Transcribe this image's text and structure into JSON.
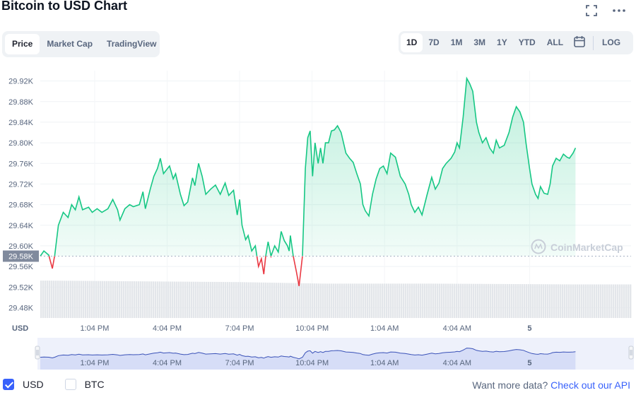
{
  "header": {
    "title": "Bitcoin to USD Chart"
  },
  "chart_type_tabs": [
    "Price",
    "Market Cap",
    "TradingView"
  ],
  "active_type_tab": 0,
  "range_tabs": [
    "1D",
    "7D",
    "1M",
    "3M",
    "1Y",
    "YTD",
    "ALL"
  ],
  "active_range_tab": 0,
  "log_label": "LOG",
  "icons": {
    "expand": "expand-icon",
    "more": "more-icon",
    "calendar": "calendar-icon",
    "watermark": "coinmarketcap-logo"
  },
  "colors": {
    "up": "#16c784",
    "down": "#ea3943",
    "accent": "#3861fb"
  },
  "watermark": "CoinMarketCap",
  "currency_label": "USD",
  "chart_data": {
    "type": "area",
    "currency": "USD",
    "ylim": [
      29.46,
      29.94
    ],
    "y_ticks": [
      "29.92K",
      "29.88K",
      "29.84K",
      "29.80K",
      "29.76K",
      "29.72K",
      "29.68K",
      "29.64K",
      "29.60K",
      "29.56K",
      "29.52K",
      "29.48K"
    ],
    "y_tick_values": [
      29.92,
      29.88,
      29.84,
      29.8,
      29.76,
      29.72,
      29.68,
      29.64,
      29.6,
      29.56,
      29.52,
      29.48
    ],
    "reference": {
      "value": 29.58,
      "label": "29.58K"
    },
    "x_ticks": [
      "1:04 PM",
      "4:04 PM",
      "7:04 PM",
      "10:04 PM",
      "1:04 AM",
      "4:04 AM",
      "5"
    ],
    "x_tick_positions": [
      2.0,
      5.0,
      8.0,
      11.0,
      14.0,
      17.0,
      20.0
    ],
    "xlim": [
      -0.25,
      24.2
    ],
    "series": [
      {
        "values": [
          [
            -0.25,
            29.58
          ],
          [
            -0.1,
            29.59
          ],
          [
            0.1,
            29.582
          ],
          [
            0.25,
            29.556
          ],
          [
            0.35,
            29.582
          ],
          [
            0.5,
            29.64
          ],
          [
            0.7,
            29.665
          ],
          [
            0.9,
            29.655
          ],
          [
            1.05,
            29.68
          ],
          [
            1.2,
            29.67
          ],
          [
            1.35,
            29.695
          ],
          [
            1.5,
            29.67
          ],
          [
            1.75,
            29.675
          ],
          [
            1.9,
            29.665
          ],
          [
            2.1,
            29.672
          ],
          [
            2.3,
            29.665
          ],
          [
            2.55,
            29.672
          ],
          [
            2.75,
            29.69
          ],
          [
            2.95,
            29.67
          ],
          [
            3.05,
            29.65
          ],
          [
            3.25,
            29.672
          ],
          [
            3.45,
            29.68
          ],
          [
            3.6,
            29.676
          ],
          [
            3.85,
            29.68
          ],
          [
            4.0,
            29.705
          ],
          [
            4.1,
            29.672
          ],
          [
            4.3,
            29.71
          ],
          [
            4.45,
            29.735
          ],
          [
            4.6,
            29.75
          ],
          [
            4.72,
            29.77
          ],
          [
            4.85,
            29.74
          ],
          [
            5.1,
            29.755
          ],
          [
            5.25,
            29.73
          ],
          [
            5.35,
            29.74
          ],
          [
            5.55,
            29.7
          ],
          [
            5.7,
            29.678
          ],
          [
            5.85,
            29.685
          ],
          [
            6.05,
            29.732
          ],
          [
            6.15,
            29.717
          ],
          [
            6.3,
            29.76
          ],
          [
            6.45,
            29.735
          ],
          [
            6.6,
            29.7
          ],
          [
            6.8,
            29.71
          ],
          [
            7.0,
            29.718
          ],
          [
            7.2,
            29.7
          ],
          [
            7.4,
            29.722
          ],
          [
            7.55,
            29.698
          ],
          [
            7.75,
            29.708
          ],
          [
            7.9,
            29.66
          ],
          [
            8.0,
            29.69
          ],
          [
            8.1,
            29.64
          ],
          [
            8.25,
            29.612
          ],
          [
            8.35,
            29.62
          ],
          [
            8.5,
            29.59
          ],
          [
            8.65,
            29.6
          ],
          [
            8.78,
            29.56
          ],
          [
            8.9,
            29.575
          ],
          [
            9.0,
            29.545
          ],
          [
            9.08,
            29.58
          ],
          [
            9.18,
            29.608
          ],
          [
            9.3,
            29.58
          ],
          [
            9.45,
            29.6
          ],
          [
            9.6,
            29.588
          ],
          [
            9.72,
            29.628
          ],
          [
            9.85,
            29.61
          ],
          [
            9.98,
            29.6
          ],
          [
            10.05,
            29.59
          ],
          [
            10.1,
            29.62
          ],
          [
            10.22,
            29.58
          ],
          [
            10.35,
            29.55
          ],
          [
            10.46,
            29.522
          ],
          [
            10.6,
            29.58
          ],
          [
            10.72,
            29.75
          ],
          [
            10.82,
            29.81
          ],
          [
            10.92,
            29.823
          ],
          [
            11.02,
            29.735
          ],
          [
            11.12,
            29.8
          ],
          [
            11.25,
            29.76
          ],
          [
            11.35,
            29.79
          ],
          [
            11.45,
            29.76
          ],
          [
            11.55,
            29.8
          ],
          [
            11.68,
            29.8
          ],
          [
            11.8,
            29.823
          ],
          [
            11.92,
            29.825
          ],
          [
            12.05,
            29.833
          ],
          [
            12.2,
            29.82
          ],
          [
            12.4,
            29.78
          ],
          [
            12.55,
            29.77
          ],
          [
            12.7,
            29.762
          ],
          [
            12.85,
            29.74
          ],
          [
            13.0,
            29.72
          ],
          [
            13.1,
            29.68
          ],
          [
            13.2,
            29.668
          ],
          [
            13.35,
            29.658
          ],
          [
            13.5,
            29.7
          ],
          [
            13.65,
            29.73
          ],
          [
            13.8,
            29.75
          ],
          [
            13.95,
            29.755
          ],
          [
            14.1,
            29.74
          ],
          [
            14.25,
            29.78
          ],
          [
            14.45,
            29.772
          ],
          [
            14.65,
            29.735
          ],
          [
            14.85,
            29.72
          ],
          [
            15.0,
            29.7
          ],
          [
            15.1,
            29.68
          ],
          [
            15.25,
            29.665
          ],
          [
            15.4,
            29.675
          ],
          [
            15.55,
            29.66
          ],
          [
            15.75,
            29.698
          ],
          [
            15.95,
            29.733
          ],
          [
            16.1,
            29.71
          ],
          [
            16.25,
            29.722
          ],
          [
            16.4,
            29.75
          ],
          [
            16.55,
            29.76
          ],
          [
            16.75,
            29.77
          ],
          [
            16.9,
            29.782
          ],
          [
            17.0,
            29.8
          ],
          [
            17.1,
            29.79
          ],
          [
            17.25,
            29.85
          ],
          [
            17.4,
            29.925
          ],
          [
            17.52,
            29.915
          ],
          [
            17.65,
            29.9
          ],
          [
            17.8,
            29.84
          ],
          [
            17.9,
            29.82
          ],
          [
            18.05,
            29.8
          ],
          [
            18.2,
            29.81
          ],
          [
            18.35,
            29.79
          ],
          [
            18.5,
            29.78
          ],
          [
            18.62,
            29.805
          ],
          [
            18.75,
            29.79
          ],
          [
            18.95,
            29.795
          ],
          [
            19.15,
            29.82
          ],
          [
            19.3,
            29.85
          ],
          [
            19.45,
            29.87
          ],
          [
            19.6,
            29.86
          ],
          [
            19.75,
            29.84
          ],
          [
            19.85,
            29.8
          ],
          [
            20.0,
            29.75
          ],
          [
            20.1,
            29.72
          ],
          [
            20.25,
            29.7
          ],
          [
            20.35,
            29.692
          ],
          [
            20.45,
            29.715
          ],
          [
            20.6,
            29.702
          ],
          [
            20.75,
            29.7
          ],
          [
            20.85,
            29.72
          ],
          [
            20.95,
            29.755
          ],
          [
            21.1,
            29.77
          ],
          [
            21.25,
            29.765
          ],
          [
            21.4,
            29.778
          ],
          [
            21.55,
            29.772
          ],
          [
            21.65,
            29.77
          ],
          [
            21.8,
            29.78
          ],
          [
            21.9,
            29.79
          ]
        ]
      }
    ],
    "volume": [
      {
        "x": 0,
        "v": 0.98
      },
      {
        "x": 4,
        "v": 0.96
      },
      {
        "x": 8,
        "v": 0.94
      },
      {
        "x": 11.5,
        "v": 0.9
      },
      {
        "x": 16,
        "v": 0.9
      },
      {
        "x": 21.9,
        "v": 0.88
      }
    ],
    "navigator_x_ticks": [
      "1:04 PM",
      "4:04 PM",
      "7:04 PM",
      "10:04 PM",
      "1:04 AM",
      "4:04 AM",
      "5"
    ]
  },
  "legend": {
    "usd_label": "USD",
    "btc_label": "BTC",
    "usd_checked": true,
    "btc_checked": false
  },
  "api": {
    "text": "Want more data?",
    "link": "Check out our API"
  }
}
